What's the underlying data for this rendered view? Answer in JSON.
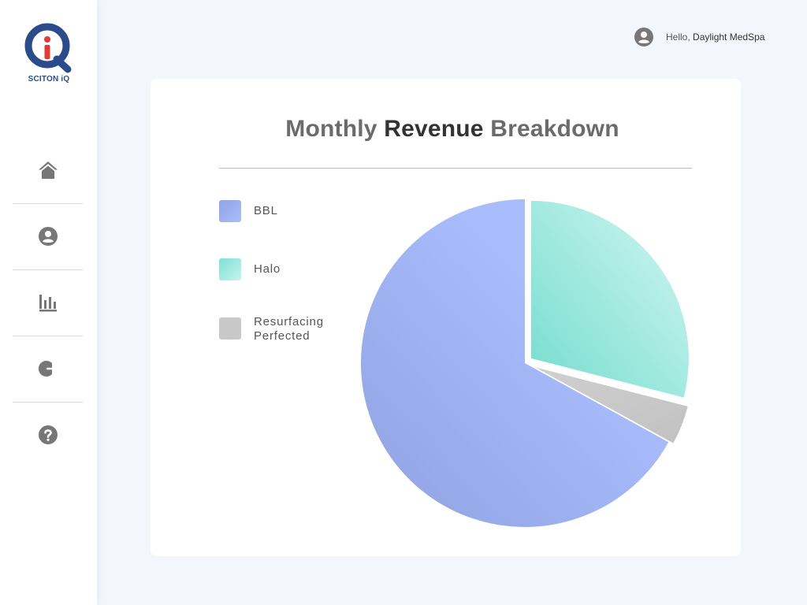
{
  "brand": {
    "logo_text": "SCITON iQ"
  },
  "sidebar": {
    "items": [
      {
        "icon": "home-icon"
      },
      {
        "icon": "user-icon"
      },
      {
        "icon": "bar-chart-icon"
      },
      {
        "icon": "logout-icon"
      },
      {
        "icon": "help-icon"
      }
    ]
  },
  "header": {
    "greeting": "Hello,",
    "user_name": "Daylight MedSpa"
  },
  "card": {
    "title_part1": "Monthly",
    "title_part2": "Revenue",
    "title_part3": "Breakdown"
  },
  "chart_data": {
    "type": "pie",
    "title": "Monthly Revenue Breakdown",
    "legend_position": "left",
    "slices": [
      {
        "label": "BBL",
        "value": 67,
        "color": "#a2b4f2"
      },
      {
        "label": "Halo",
        "value": 29,
        "color": "#a6ece3"
      },
      {
        "label": "Resurfacing Perfected",
        "value": 4,
        "color": "#c8c8c8"
      }
    ]
  },
  "colors": {
    "logo_blue": "#2b4c8c",
    "logo_red": "#e53935",
    "icon_gray": "#777777"
  }
}
